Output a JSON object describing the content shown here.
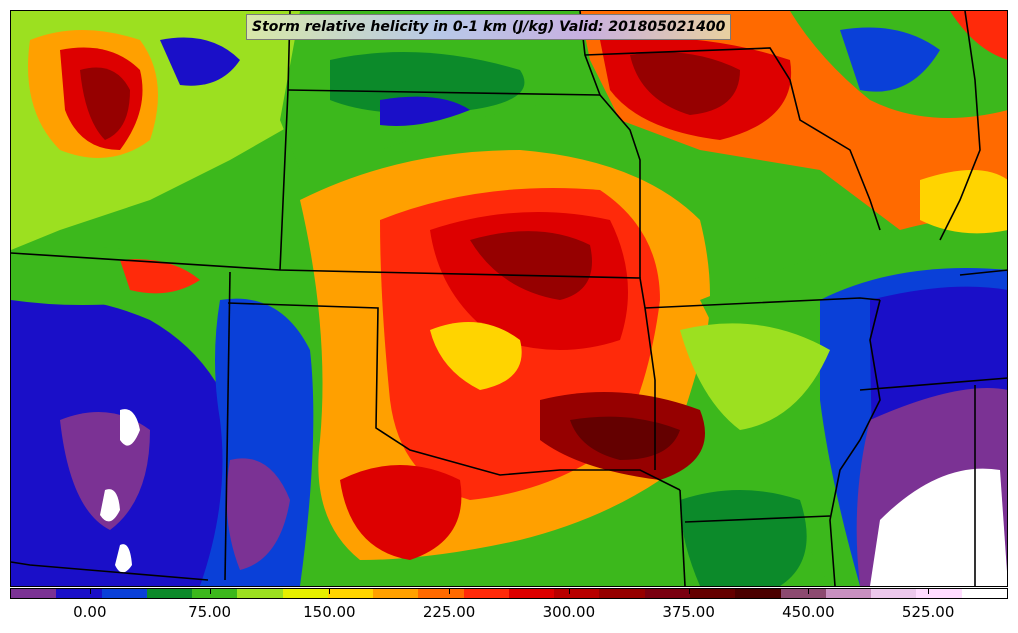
{
  "title": "Storm relative helicity in 0-1 km (J/kg) Valid: 201805021400",
  "colorbar": {
    "ticks": [
      "0.00",
      "75.00",
      "150.00",
      "225.00",
      "300.00",
      "375.00",
      "450.00",
      "525.00"
    ],
    "colors": [
      "#7b3294",
      "#1a0fc8",
      "#0a40d8",
      "#0c8a2a",
      "#3cb81c",
      "#9ce020",
      "#e6f000",
      "#ffd400",
      "#ffa000",
      "#ff6a00",
      "#ff2a0a",
      "#dd0000",
      "#b80000",
      "#960000",
      "#7a0010",
      "#640000",
      "#4a0000",
      "#8c4a70",
      "#c890c0",
      "#ecc8ec",
      "#ffdcff",
      "#ffffff"
    ],
    "min": -50,
    "max": 575,
    "tick_values": [
      0,
      75,
      150,
      225,
      300,
      375,
      450,
      525
    ]
  },
  "map": {
    "shading": "storm relative helicity 0-1 km",
    "region": "Central United States",
    "border_color": "#000000"
  }
}
